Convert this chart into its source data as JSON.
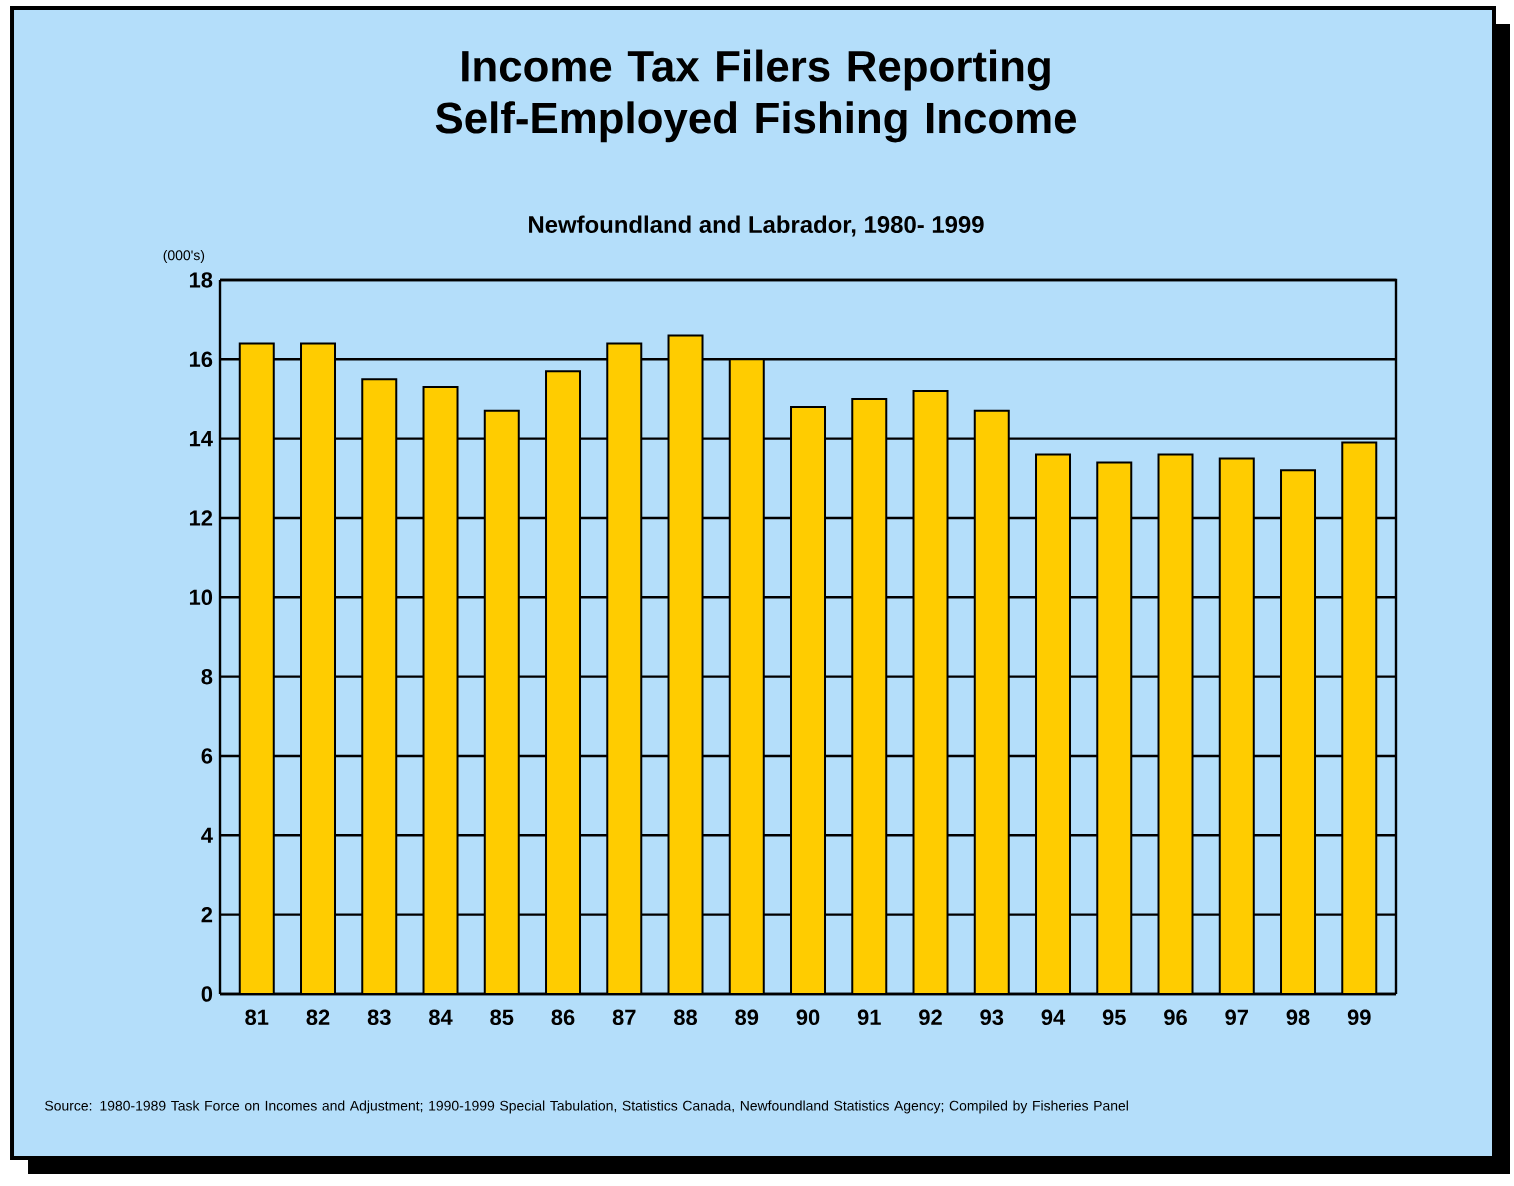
{
  "chart_data": {
    "type": "bar",
    "title": "Income Tax Filers Reporting Self-Employed Fishing Income",
    "subtitle": "Newfoundland and Labrador, 1980- 1999",
    "ylabel": "(000's)",
    "categories": [
      "81",
      "82",
      "83",
      "84",
      "85",
      "86",
      "87",
      "88",
      "89",
      "90",
      "91",
      "92",
      "93",
      "94",
      "95",
      "96",
      "97",
      "98",
      "99"
    ],
    "values": [
      16.4,
      16.4,
      15.5,
      15.3,
      14.7,
      15.7,
      16.4,
      16.6,
      16.0,
      14.8,
      15.0,
      15.2,
      14.7,
      13.6,
      13.4,
      13.6,
      13.5,
      13.2,
      13.9
    ],
    "color": "#ffcc00",
    "ylim": [
      0,
      18
    ],
    "yticks": [
      0,
      2,
      4,
      6,
      8,
      10,
      12,
      14,
      16,
      18
    ],
    "grid": "y",
    "annotations": [
      "Source: 1980-1989 Task Force on Incomes and Adjustment; 1990-1999 Special Tabulation, Statistics Canada, Newfoundland Statistics Agency; Compiled by Fisheries Panel"
    ]
  }
}
